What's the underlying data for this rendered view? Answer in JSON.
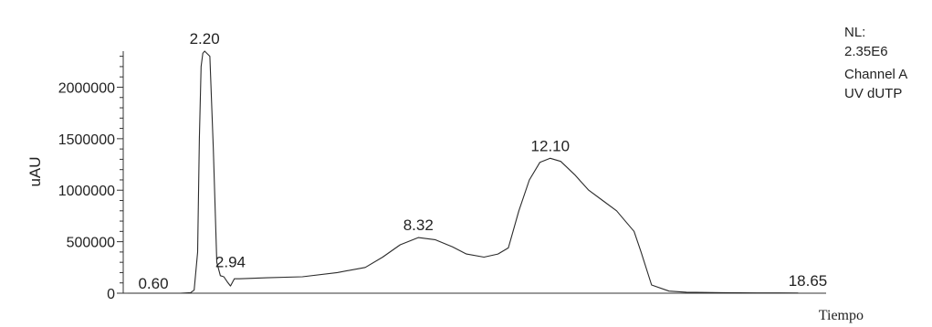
{
  "chart_data": {
    "type": "line",
    "xlabel": "Tiempo",
    "ylabel": "uAU",
    "ylim": [
      0,
      2350000
    ],
    "xlim": [
      0,
      20
    ],
    "yticks": [
      {
        "value": 0,
        "label": "0"
      },
      {
        "value": 500000,
        "label": "500000"
      },
      {
        "value": 1000000,
        "label": "1000000"
      },
      {
        "value": 1500000,
        "label": "1500000"
      },
      {
        "value": 2000000,
        "label": "2000000"
      }
    ],
    "info": [
      "NL:",
      "2.35E6",
      "Channel A",
      "UV dUTP"
    ],
    "peak_labels": [
      {
        "x": 2.2,
        "y": 2350000,
        "label": "2.20"
      },
      {
        "x": 2.94,
        "y": 180000,
        "label": "2.94"
      },
      {
        "x": 8.32,
        "y": 540000,
        "label": "8.32"
      },
      {
        "x": 12.1,
        "y": 1310000,
        "label": "12.10"
      },
      {
        "x": 0.6,
        "y": 0,
        "label": "0.60"
      },
      {
        "x": 18.65,
        "y": 0,
        "label": "18.65"
      }
    ],
    "series": [
      {
        "x": [
          0,
          1.5,
          1.8,
          1.9,
          2.0,
          2.05,
          2.1,
          2.15,
          2.2,
          2.35,
          2.45,
          2.55,
          2.65,
          2.75,
          2.85,
          2.94,
          3.05,
          3.2,
          4.0,
          5.0,
          6.0,
          6.8,
          7.3,
          7.8,
          8.32,
          8.8,
          9.3,
          9.7,
          10.2,
          10.6,
          10.9,
          11.2,
          11.5,
          11.8,
          12.1,
          12.4,
          12.8,
          13.2,
          13.6,
          14.0,
          14.2,
          14.5,
          14.7,
          15.0,
          15.5,
          16.0,
          17.0,
          18.0,
          18.65,
          19.2
        ],
        "y": [
          0,
          0,
          5000,
          30000,
          400000,
          1500000,
          2200000,
          2330000,
          2350000,
          2300000,
          1400000,
          300000,
          170000,
          160000,
          110000,
          70000,
          140000,
          140000,
          150000,
          160000,
          200000,
          250000,
          350000,
          470000,
          540000,
          520000,
          450000,
          380000,
          350000,
          380000,
          440000,
          800000,
          1100000,
          1270000,
          1310000,
          1280000,
          1150000,
          1000000,
          900000,
          800000,
          720000,
          600000,
          400000,
          80000,
          20000,
          10000,
          5000,
          3000,
          3000,
          2000
        ]
      }
    ]
  }
}
